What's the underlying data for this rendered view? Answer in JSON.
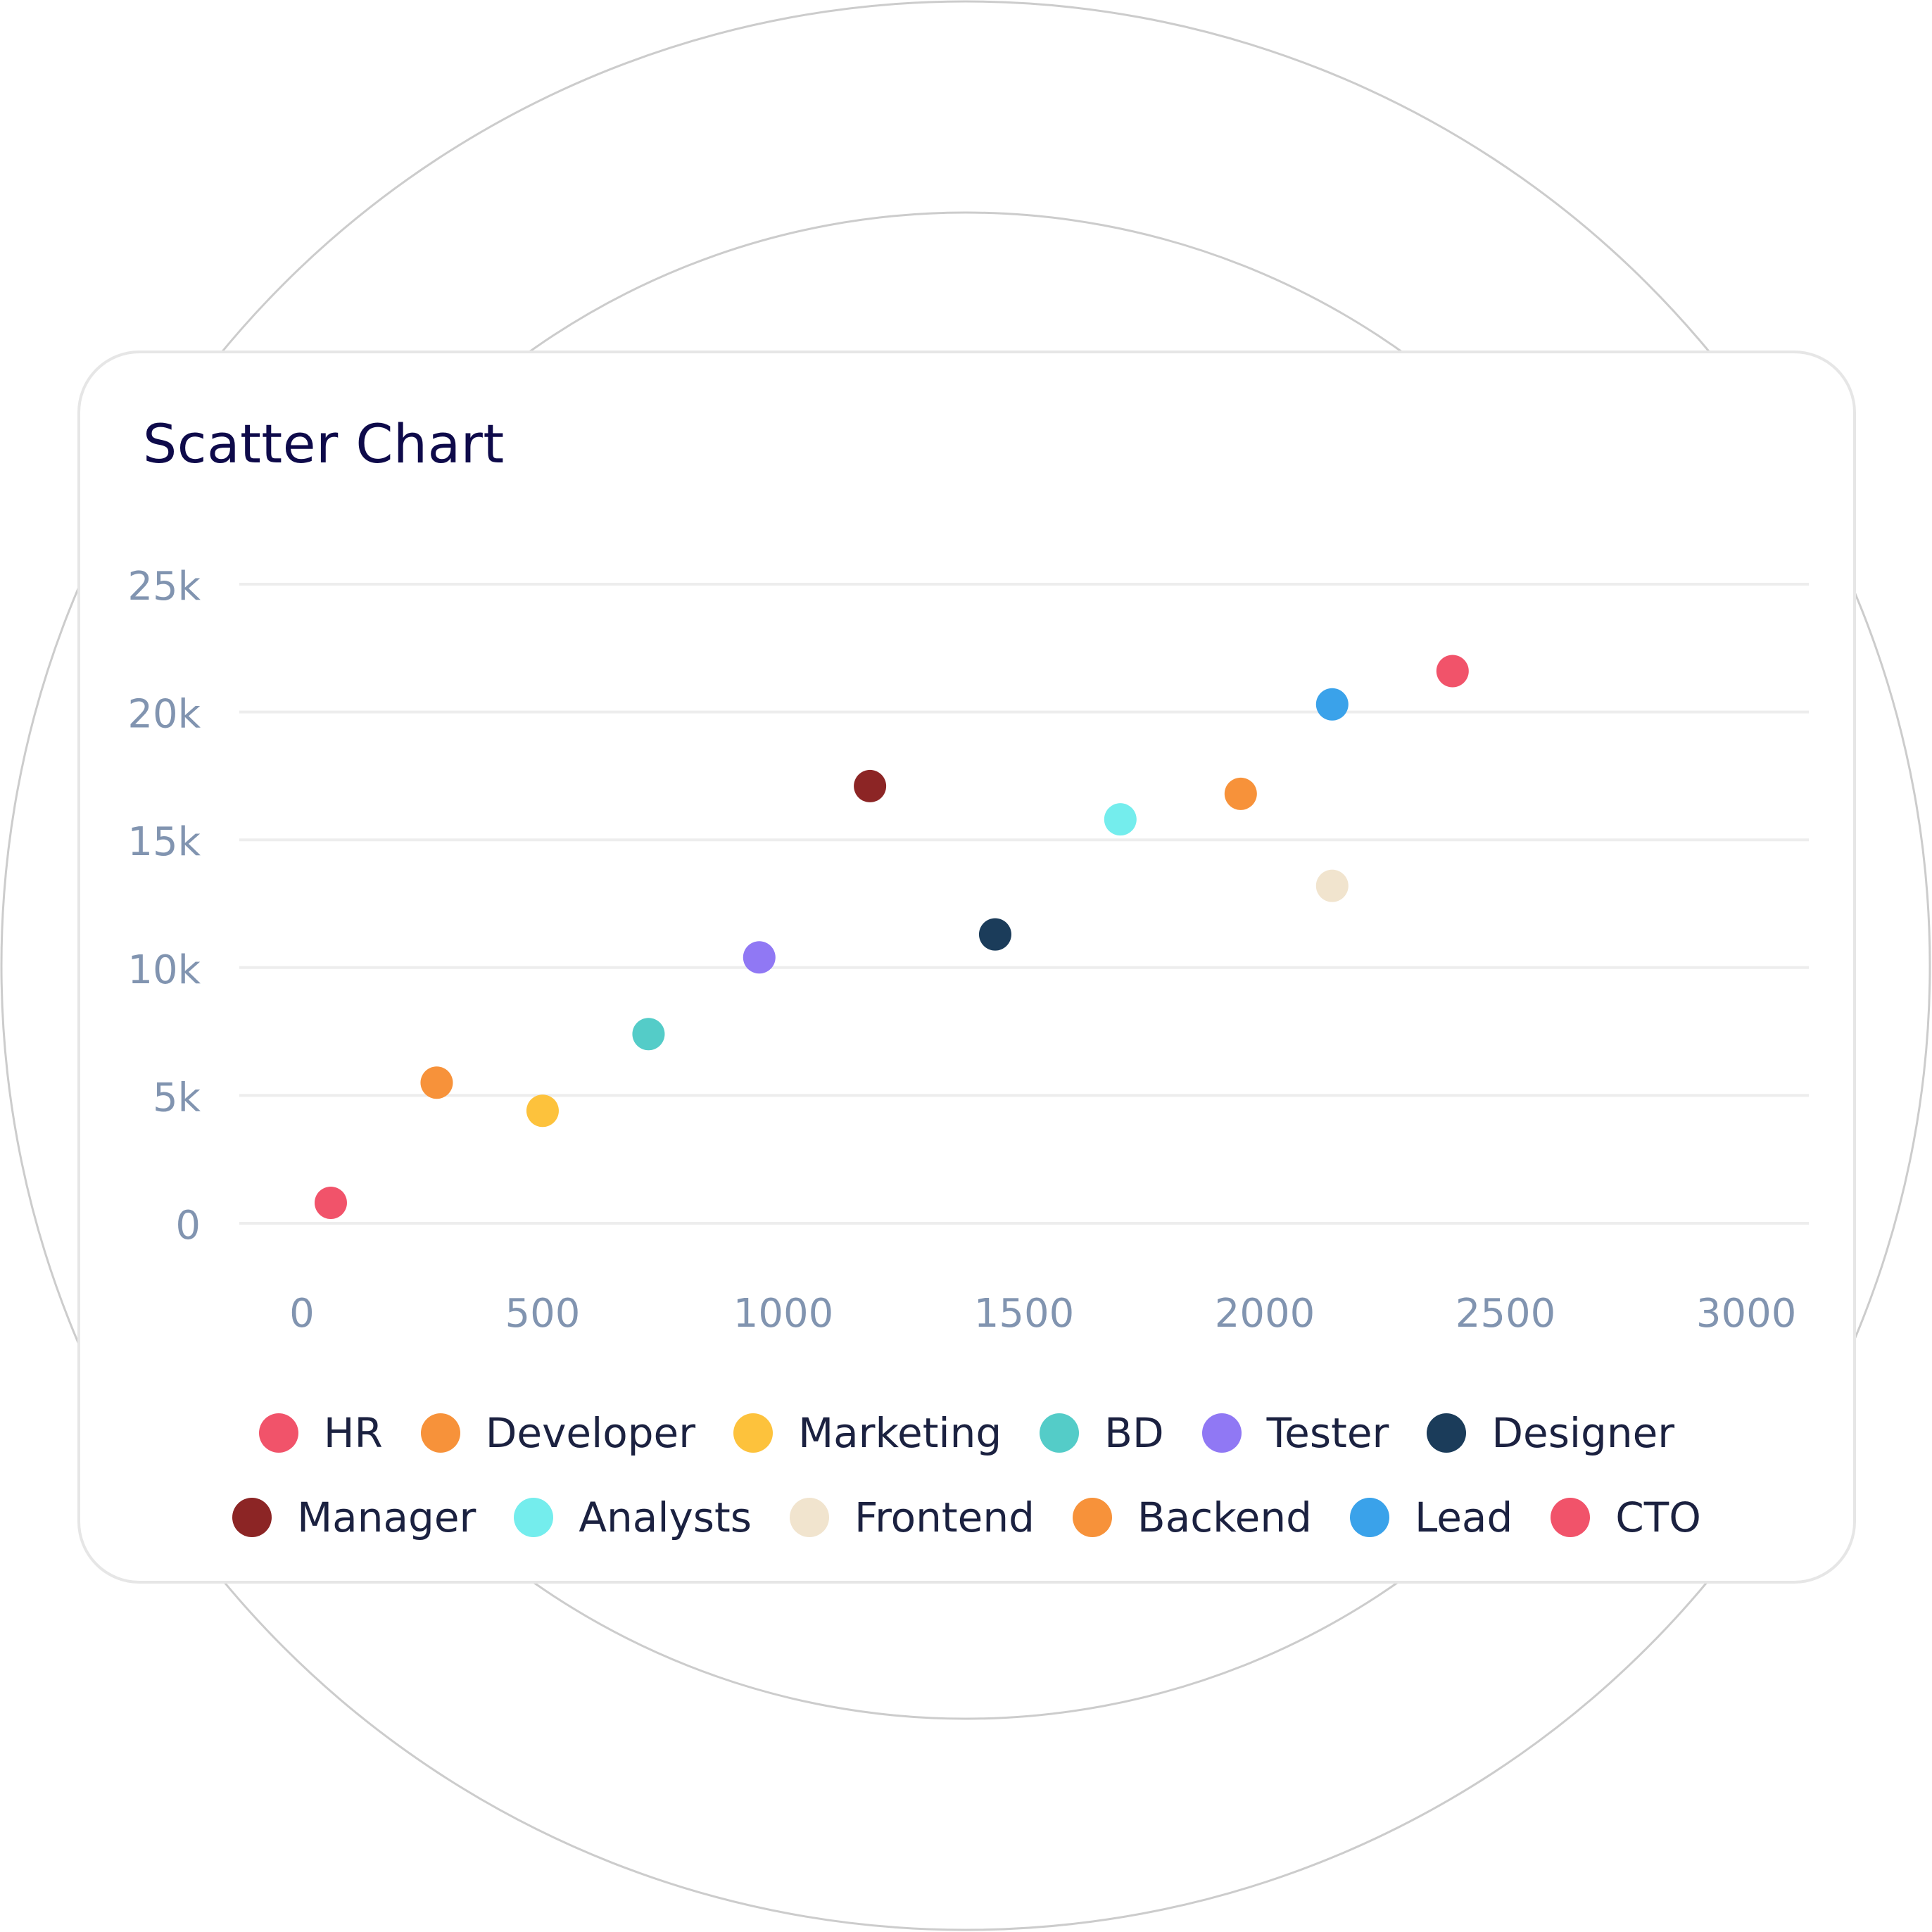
{
  "chart_data": {
    "type": "scatter",
    "title": "Scatter Chart",
    "xlabel": "",
    "ylabel": "",
    "xlim": [
      -130,
      3130
    ],
    "ylim": [
      0,
      25000
    ],
    "x_ticks": [
      0,
      500,
      1000,
      1500,
      2000,
      2500,
      3000
    ],
    "x_tick_labels": [
      "0",
      "500",
      "1000",
      "1500",
      "2000",
      "2500",
      "3000"
    ],
    "y_ticks": [
      0,
      5000,
      10000,
      15000,
      20000,
      25000
    ],
    "y_tick_labels": [
      "0",
      "5k",
      "10k",
      "15k",
      "20k",
      "25k"
    ],
    "grid": "horizontal",
    "legend_position": "bottom",
    "series": [
      {
        "name": "HR",
        "color": "#f1536a",
        "points": [
          [
            60,
            800
          ]
        ]
      },
      {
        "name": "Developer",
        "color": "#f7923a",
        "points": [
          [
            280,
            5500
          ]
        ]
      },
      {
        "name": "Marketing",
        "color": "#fdc23c",
        "points": [
          [
            500,
            4400
          ]
        ]
      },
      {
        "name": "BD",
        "color": "#54ccc8",
        "points": [
          [
            720,
            7400
          ]
        ]
      },
      {
        "name": "Tester",
        "color": "#9078f4",
        "points": [
          [
            950,
            10400
          ]
        ]
      },
      {
        "name": "Designer",
        "color": "#1b3c5a",
        "points": [
          [
            1440,
            11300
          ]
        ]
      },
      {
        "name": "Manager",
        "color": "#8c2525",
        "points": [
          [
            1180,
            17100
          ]
        ]
      },
      {
        "name": "Analysts",
        "color": "#74eded",
        "points": [
          [
            1700,
            15800
          ]
        ]
      },
      {
        "name": "Frontend",
        "color": "#f1e4ce",
        "points": [
          [
            2140,
            13200
          ]
        ]
      },
      {
        "name": "Backend",
        "color": "#f7923a",
        "points": [
          [
            1950,
            16800
          ]
        ]
      },
      {
        "name": "Lead",
        "color": "#3aa2ea",
        "points": [
          [
            2140,
            20300
          ]
        ]
      },
      {
        "name": "CTO",
        "color": "#f1536a",
        "points": [
          [
            2390,
            21600
          ]
        ]
      }
    ]
  }
}
